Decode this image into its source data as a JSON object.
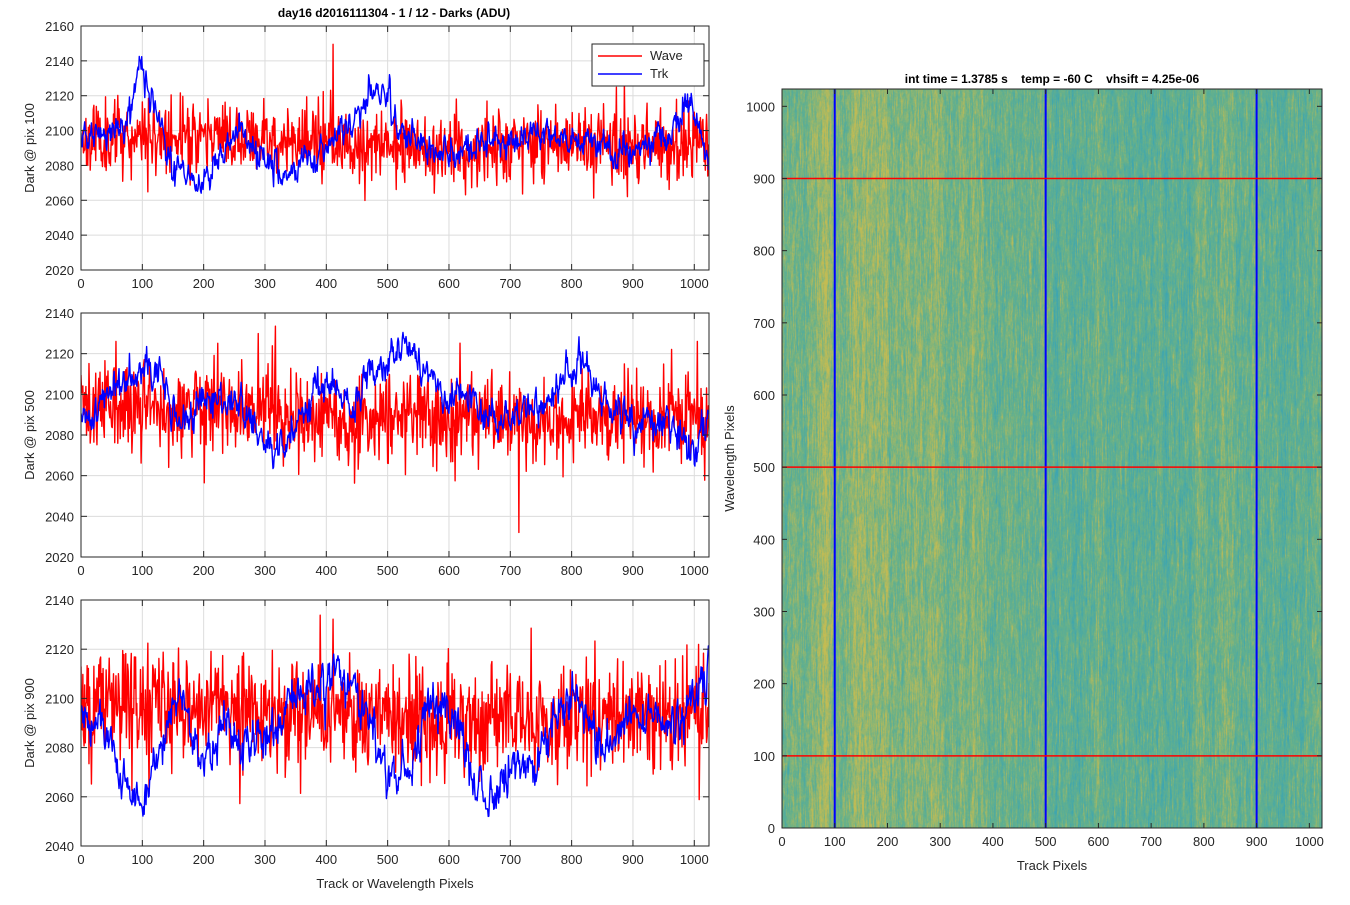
{
  "figure_title": "day16 d2016111304 - 1 / 12 - Darks (ADU)",
  "chart_data": [
    {
      "type": "line",
      "title": "day16 d2016111304 - 1 / 12 - Darks (ADU)",
      "xlabel": "",
      "ylabel": "Dark @ pix 100",
      "xlim": [
        0,
        1024
      ],
      "ylim": [
        2020,
        2160
      ],
      "xticks": [
        0,
        100,
        200,
        300,
        400,
        500,
        600,
        700,
        800,
        900,
        1000
      ],
      "yticks": [
        2020,
        2040,
        2060,
        2080,
        2100,
        2120,
        2140,
        2160
      ],
      "grid": true,
      "legend": {
        "placement": "top-right",
        "entries": [
          "Wave",
          "Trk"
        ]
      },
      "series": [
        {
          "name": "Wave",
          "color": "#ff0000",
          "style": "noise",
          "mean": 2094,
          "sd": 10,
          "seed": 11,
          "x": [
            0,
            200,
            400,
            600,
            800,
            1024
          ],
          "y": [
            2096,
            2097,
            2093,
            2090,
            2093,
            2092
          ]
        },
        {
          "name": "Trk",
          "color": "#0000ff",
          "style": "smooth",
          "sd": 4,
          "seed": 21,
          "x": [
            0,
            50,
            80,
            95,
            120,
            150,
            180,
            220,
            260,
            300,
            330,
            360,
            400,
            440,
            480,
            500,
            520,
            550,
            600,
            650,
            700,
            750,
            800,
            850,
            900,
            950,
            985,
            1010,
            1024
          ],
          "y": [
            2096,
            2098,
            2112,
            2136,
            2115,
            2080,
            2068,
            2078,
            2103,
            2083,
            2073,
            2080,
            2093,
            2105,
            2123,
            2122,
            2100,
            2095,
            2084,
            2091,
            2093,
            2100,
            2096,
            2091,
            2088,
            2095,
            2112,
            2098,
            2085
          ]
        }
      ]
    },
    {
      "type": "line",
      "title": "",
      "xlabel": "",
      "ylabel": "Dark @ pix 500",
      "xlim": [
        0,
        1024
      ],
      "ylim": [
        2020,
        2140
      ],
      "xticks": [
        0,
        100,
        200,
        300,
        400,
        500,
        600,
        700,
        800,
        900,
        1000
      ],
      "yticks": [
        2020,
        2040,
        2060,
        2080,
        2100,
        2120,
        2140
      ],
      "grid": true,
      "series": [
        {
          "name": "Wave",
          "color": "#ff0000",
          "style": "noise",
          "mean": 2090,
          "sd": 11,
          "seed": 31,
          "x": [
            0,
            200,
            400,
            600,
            800,
            1024
          ],
          "y": [
            2094,
            2093,
            2090,
            2088,
            2089,
            2090
          ]
        },
        {
          "name": "Trk",
          "color": "#0000ff",
          "style": "smooth",
          "sd": 4,
          "seed": 41,
          "x": [
            0,
            50,
            100,
            130,
            160,
            200,
            250,
            300,
            330,
            360,
            400,
            440,
            480,
            520,
            550,
            570,
            590,
            620,
            660,
            700,
            750,
            800,
            820,
            850,
            900,
            960,
            1000,
            1024
          ],
          "y": [
            2084,
            2102,
            2118,
            2108,
            2085,
            2095,
            2098,
            2075,
            2070,
            2094,
            2108,
            2090,
            2115,
            2124,
            2118,
            2110,
            2095,
            2100,
            2088,
            2090,
            2094,
            2112,
            2116,
            2095,
            2085,
            2085,
            2072,
            2092
          ]
        }
      ]
    },
    {
      "type": "line",
      "title": "",
      "xlabel": "Track or Wavelength Pixels",
      "ylabel": "Dark @ pix 900",
      "xlim": [
        0,
        1024
      ],
      "ylim": [
        2040,
        2140
      ],
      "xticks": [
        0,
        100,
        200,
        300,
        400,
        500,
        600,
        700,
        800,
        900,
        1000
      ],
      "yticks": [
        2040,
        2060,
        2080,
        2100,
        2120,
        2140
      ],
      "grid": true,
      "series": [
        {
          "name": "Wave",
          "color": "#ff0000",
          "style": "noise",
          "mean": 2095,
          "sd": 11,
          "seed": 51,
          "x": [
            0,
            200,
            400,
            600,
            800,
            1024
          ],
          "y": [
            2098,
            2097,
            2094,
            2092,
            2094,
            2093
          ]
        },
        {
          "name": "Trk",
          "color": "#0000ff",
          "style": "smooth",
          "sd": 4,
          "seed": 61,
          "x": [
            0,
            40,
            70,
            100,
            130,
            160,
            200,
            240,
            270,
            300,
            340,
            380,
            420,
            460,
            500,
            540,
            580,
            620,
            660,
            700,
            740,
            780,
            800,
            830,
            860,
            900,
            940,
            980,
            1010,
            1024
          ],
          "y": [
            2092,
            2088,
            2065,
            2056,
            2082,
            2105,
            2070,
            2095,
            2078,
            2085,
            2098,
            2105,
            2110,
            2095,
            2068,
            2072,
            2102,
            2085,
            2058,
            2072,
            2075,
            2095,
            2105,
            2090,
            2078,
            2092,
            2093,
            2088,
            2105,
            2112
          ]
        }
      ]
    },
    {
      "type": "heatmap",
      "title": "int time = 1.3785 s    temp = -60 C    vhsift = 4.25e-06",
      "xlabel": "Track Pixels",
      "ylabel": "Wavelength Pixels",
      "xlim": [
        0,
        1024
      ],
      "ylim": [
        0,
        1024
      ],
      "xticks": [
        0,
        100,
        200,
        300,
        400,
        500,
        600,
        700,
        800,
        900,
        1000
      ],
      "yticks": [
        0,
        100,
        200,
        300,
        400,
        500,
        600,
        700,
        800,
        900,
        1000
      ],
      "colors": {
        "low": "#3aa5b4",
        "mid": "#67b18a",
        "high": "#c5bc52"
      },
      "vertical_lines": {
        "x": [
          100,
          500,
          900
        ],
        "color": "#0000ff"
      },
      "horizontal_lines": {
        "y": [
          100,
          500,
          900
        ],
        "color": "#ff0000"
      }
    }
  ]
}
